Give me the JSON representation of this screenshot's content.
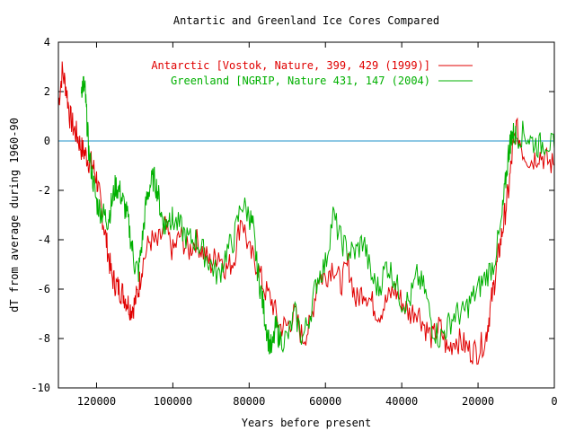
{
  "chart_data": {
    "type": "line",
    "title": "Antartic and Greenland Ice Cores Compared",
    "xlabel": "Years before present",
    "ylabel": "dT from average during 1960-90",
    "xlim": [
      130000,
      0
    ],
    "ylim": [
      -10,
      4
    ],
    "x_ticks": [
      120000,
      100000,
      80000,
      60000,
      40000,
      20000,
      0
    ],
    "x_tick_labels": [
      "120000",
      "100000",
      "80000",
      "60000",
      "40000",
      "20000",
      "0"
    ],
    "y_ticks": [
      4,
      2,
      0,
      -2,
      -4,
      -6,
      -8,
      -10
    ],
    "y_tick_labels": [
      "4",
      "2",
      "0",
      "-2",
      "-4",
      "-6",
      "-8",
      "-10"
    ],
    "legend_position": "top-right",
    "zero_line": {
      "y": 0,
      "color": "#1e90c8"
    },
    "series": [
      {
        "name": "Antarctic [Vostok, Nature, 399, 429 (1999)]",
        "color": "#e00000",
        "x": [
          130000,
          129000,
          128000,
          127000,
          126000,
          125000,
          124000,
          123000,
          122000,
          121000,
          120000,
          119000,
          118000,
          117000,
          116000,
          115000,
          114000,
          113000,
          112000,
          111000,
          110000,
          109000,
          108000,
          106000,
          104000,
          102000,
          100000,
          98000,
          96000,
          94000,
          92000,
          90000,
          88000,
          86000,
          84000,
          82000,
          80000,
          78000,
          76000,
          74000,
          72000,
          70000,
          68000,
          66000,
          64000,
          62000,
          60000,
          58000,
          56000,
          54000,
          52000,
          50000,
          48000,
          46000,
          44000,
          42000,
          40000,
          38000,
          36000,
          34000,
          32000,
          30000,
          28000,
          26000,
          24000,
          22000,
          20000,
          18000,
          17000,
          16000,
          15000,
          14000,
          13000,
          12000,
          11000,
          10000,
          8000,
          6000,
          4000,
          2000,
          0
        ],
        "y": [
          1.5,
          2.8,
          2.2,
          1.0,
          0.5,
          0.2,
          -0.3,
          -0.5,
          -0.8,
          -1.0,
          -1.5,
          -2.5,
          -3.5,
          -4.5,
          -5.5,
          -5.8,
          -6.0,
          -6.2,
          -6.5,
          -6.8,
          -6.6,
          -6.0,
          -5.0,
          -4.0,
          -4.2,
          -3.5,
          -4.5,
          -3.8,
          -4.5,
          -4.0,
          -4.5,
          -5.0,
          -4.5,
          -5.2,
          -4.8,
          -3.0,
          -4.5,
          -5.0,
          -6.0,
          -6.5,
          -7.5,
          -7.5,
          -7.0,
          -8.0,
          -7.5,
          -5.5,
          -5.5,
          -5.0,
          -5.8,
          -5.0,
          -6.5,
          -6.0,
          -6.5,
          -7.0,
          -6.5,
          -6.0,
          -6.5,
          -7.0,
          -6.8,
          -7.5,
          -8.0,
          -7.5,
          -8.5,
          -8.0,
          -8.2,
          -8.5,
          -8.5,
          -8.0,
          -7.0,
          -6.0,
          -5.0,
          -4.0,
          -3.0,
          -2.0,
          -0.5,
          0.5,
          -0.5,
          -0.8,
          -0.5,
          -0.8,
          -1.0
        ]
      },
      {
        "name": "Greenland [NGRIP, Nature 431, 147 (2004)",
        "color": "#00b000",
        "x": [
          124000,
          123500,
          123000,
          122500,
          122000,
          121000,
          120000,
          119000,
          118000,
          117000,
          116000,
          115000,
          114000,
          113000,
          112000,
          111000,
          110000,
          109000,
          108000,
          107000,
          106000,
          105000,
          104000,
          103000,
          102000,
          101000,
          100000,
          98000,
          96000,
          94000,
          92000,
          90000,
          88000,
          86000,
          84000,
          82000,
          80000,
          79000,
          78000,
          77000,
          76000,
          75000,
          74000,
          73000,
          72000,
          70000,
          68000,
          66000,
          64000,
          62000,
          60000,
          58000,
          56000,
          54000,
          52000,
          50000,
          48000,
          46000,
          44000,
          42000,
          40000,
          38000,
          36000,
          34000,
          32000,
          30000,
          28000,
          26000,
          24000,
          22000,
          20000,
          18000,
          16000,
          14000,
          13000,
          12000,
          11500,
          11000,
          10000,
          8000,
          6000,
          4000,
          2000,
          0
        ],
        "y": [
          2.2,
          2.3,
          2.0,
          0.8,
          -0.5,
          -1.5,
          -2.5,
          -2.8,
          -3.0,
          -3.2,
          -2.5,
          -1.8,
          -2.0,
          -2.5,
          -3.0,
          -4.0,
          -5.0,
          -5.3,
          -4.0,
          -2.5,
          -1.8,
          -1.5,
          -2.0,
          -3.0,
          -3.5,
          -3.0,
          -3.2,
          -3.5,
          -4.0,
          -4.0,
          -4.5,
          -5.0,
          -5.5,
          -4.5,
          -4.0,
          -2.5,
          -3.0,
          -3.5,
          -5.0,
          -6.0,
          -7.0,
          -8.0,
          -8.5,
          -7.5,
          -8.0,
          -8.0,
          -7.0,
          -8.0,
          -7.0,
          -5.5,
          -5.0,
          -3.0,
          -4.0,
          -4.5,
          -4.5,
          -4.0,
          -5.5,
          -6.0,
          -5.0,
          -5.5,
          -6.5,
          -6.5,
          -5.5,
          -6.0,
          -7.5,
          -8.0,
          -7.5,
          -7.0,
          -7.0,
          -6.5,
          -6.0,
          -5.5,
          -5.0,
          -3.5,
          -2.0,
          -0.5,
          0.0,
          0.3,
          0.2,
          0.3,
          0.0,
          -0.2,
          0.0,
          -0.3
        ]
      }
    ]
  }
}
